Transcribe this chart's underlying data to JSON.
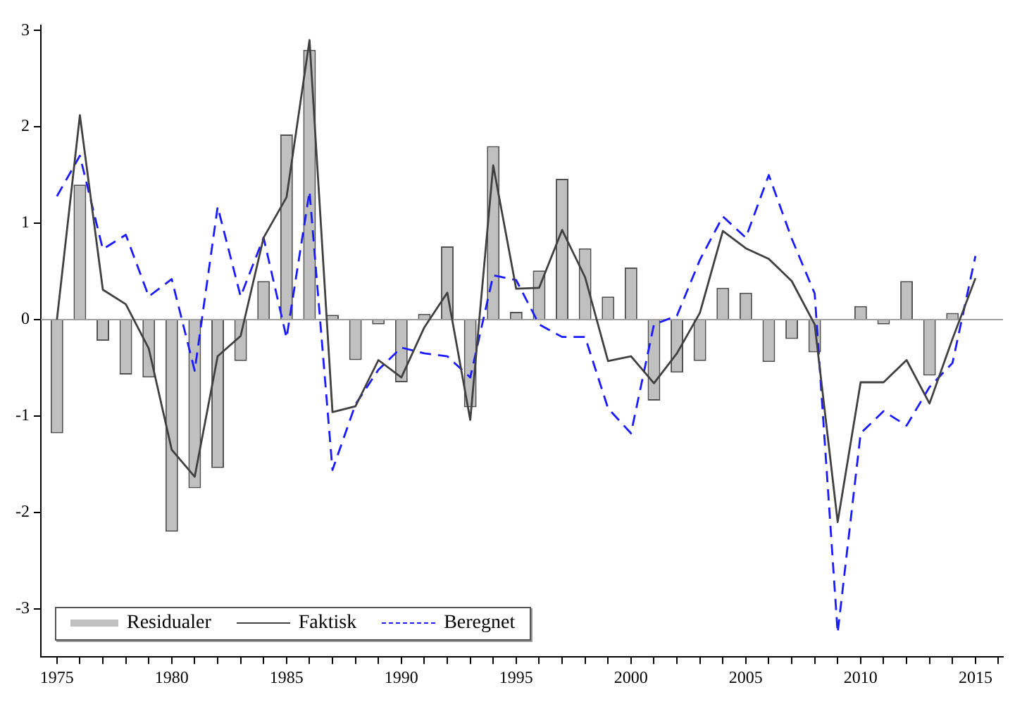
{
  "chart_data": {
    "type": "bar",
    "x": [
      1975,
      1976,
      1977,
      1978,
      1979,
      1980,
      1981,
      1982,
      1983,
      1984,
      1985,
      1986,
      1987,
      1988,
      1989,
      1990,
      1991,
      1992,
      1993,
      1994,
      1995,
      1996,
      1997,
      1998,
      1999,
      2000,
      2001,
      2002,
      2003,
      2004,
      2005,
      2006,
      2007,
      2008,
      2009,
      2010,
      2011,
      2012,
      2013,
      2014,
      2015
    ],
    "series": [
      {
        "name": "Residualer",
        "color": "#c0c0c0",
        "values": [
          -1.18,
          1.4,
          -0.22,
          -0.57,
          -0.6,
          -2.2,
          -1.75,
          -1.54,
          -0.43,
          0.4,
          1.92,
          2.8,
          0.05,
          -0.42,
          -0.05,
          -0.65,
          0.06,
          0.76,
          -0.91,
          1.8,
          0.08,
          0.51,
          1.46,
          0.74,
          0.24,
          0.54,
          -0.84,
          -0.55,
          -0.43,
          0.33,
          0.28,
          -0.44,
          -0.2,
          -0.34,
          0.0,
          0.14,
          -0.05,
          0.4,
          -0.58,
          0.07,
          0.0
        ]
      },
      {
        "name": "Faktisk",
        "type": "line",
        "color": "#404040",
        "line_style": "solid",
        "values": [
          0.0,
          2.12,
          0.31,
          0.16,
          -0.3,
          -1.35,
          -1.63,
          -0.38,
          -0.17,
          0.85,
          1.27,
          2.9,
          -0.96,
          -0.9,
          -0.42,
          -0.6,
          -0.08,
          0.28,
          -1.04,
          1.6,
          0.32,
          0.33,
          0.93,
          0.44,
          -0.43,
          -0.38,
          -0.66,
          -0.35,
          0.07,
          0.92,
          0.74,
          0.63,
          0.4,
          -0.05,
          -2.1,
          -0.65,
          -0.65,
          -0.42,
          -0.87,
          -0.2,
          0.43
        ]
      },
      {
        "name": "Beregnet",
        "type": "line",
        "color": "#1a1aff",
        "line_style": "dashed",
        "values": [
          1.28,
          1.7,
          0.73,
          0.88,
          0.24,
          0.42,
          -0.53,
          1.17,
          0.24,
          0.85,
          -0.19,
          1.33,
          -1.56,
          -0.88,
          -0.52,
          -0.29,
          -0.35,
          -0.38,
          -0.6,
          0.46,
          0.41,
          -0.05,
          -0.18,
          -0.18,
          -0.92,
          -1.18,
          -0.05,
          0.04,
          0.62,
          1.07,
          0.85,
          1.5,
          0.84,
          0.27,
          -3.25,
          -1.18,
          -0.95,
          -1.1,
          -0.7,
          -0.45,
          0.66
        ]
      }
    ],
    "xlim": [
      1974.3,
      2016.2
    ],
    "xticks": [
      1975,
      {
        "value": 1976,
        "label": null
      },
      {
        "value": 1977,
        "label": null
      },
      {
        "value": 1978,
        "label": null
      },
      {
        "value": 1979,
        "label": null
      },
      1980,
      {
        "value": 1981,
        "label": null
      },
      {
        "value": 1982,
        "label": null
      },
      {
        "value": 1983,
        "label": null
      },
      {
        "value": 1984,
        "label": null
      },
      1985,
      {
        "value": 1986,
        "label": null
      },
      {
        "value": 1987,
        "label": null
      },
      {
        "value": 1988,
        "label": null
      },
      {
        "value": 1989,
        "label": null
      },
      1990,
      {
        "value": 1991,
        "label": null
      },
      {
        "value": 1992,
        "label": null
      },
      {
        "value": 1993,
        "label": null
      },
      {
        "value": 1994,
        "label": null
      },
      1995,
      {
        "value": 1996,
        "label": null
      },
      {
        "value": 1997,
        "label": null
      },
      {
        "value": 1998,
        "label": null
      },
      {
        "value": 1999,
        "label": null
      },
      2000,
      {
        "value": 2001,
        "label": null
      },
      {
        "value": 2002,
        "label": null
      },
      {
        "value": 2003,
        "label": null
      },
      {
        "value": 2004,
        "label": null
      },
      2005,
      {
        "value": 2006,
        "label": null
      },
      {
        "value": 2007,
        "label": null
      },
      {
        "value": 2008,
        "label": null
      },
      {
        "value": 2009,
        "label": null
      },
      2010,
      {
        "value": 2011,
        "label": null
      },
      {
        "value": 2012,
        "label": null
      },
      {
        "value": 2013,
        "label": null
      },
      {
        "value": 2014,
        "label": null
      },
      2015,
      {
        "value": 2016,
        "label": null
      }
    ],
    "ylim": [
      -3.5,
      3.05
    ],
    "yticks": [
      -3,
      -2,
      -1,
      0,
      1,
      2,
      3
    ],
    "ref_lines": [
      {
        "axis": "y",
        "value": 0,
        "color": "#a0a0a0"
      }
    ],
    "grid": false,
    "legend": "bottom left"
  }
}
